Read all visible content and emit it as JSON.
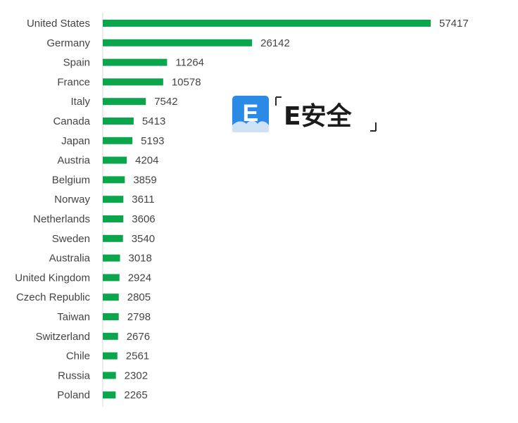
{
  "chart_data": {
    "type": "bar",
    "orientation": "horizontal",
    "categories": [
      "United States",
      "Germany",
      "Spain",
      "France",
      "Italy",
      "Canada",
      "Japan",
      "Austria",
      "Belgium",
      "Norway",
      "Netherlands",
      "Sweden",
      "Australia",
      "United Kingdom",
      "Czech Republic",
      "Taiwan",
      "Switzerland",
      "Chile",
      "Russia",
      "Poland"
    ],
    "values": [
      57417,
      26142,
      11264,
      10578,
      7542,
      5413,
      5193,
      4204,
      3859,
      3611,
      3606,
      3540,
      3018,
      2924,
      2805,
      2798,
      2676,
      2561,
      2302,
      2265
    ],
    "xlim": [
      0,
      57417
    ],
    "data_labels": true,
    "grid": false,
    "legend": "none",
    "bar_color": "#0aa64b"
  },
  "watermark": {
    "text": "E安全",
    "icon_letter": "E",
    "icon_color": "#2b8ae6",
    "text_color": "#1b1b1b"
  }
}
